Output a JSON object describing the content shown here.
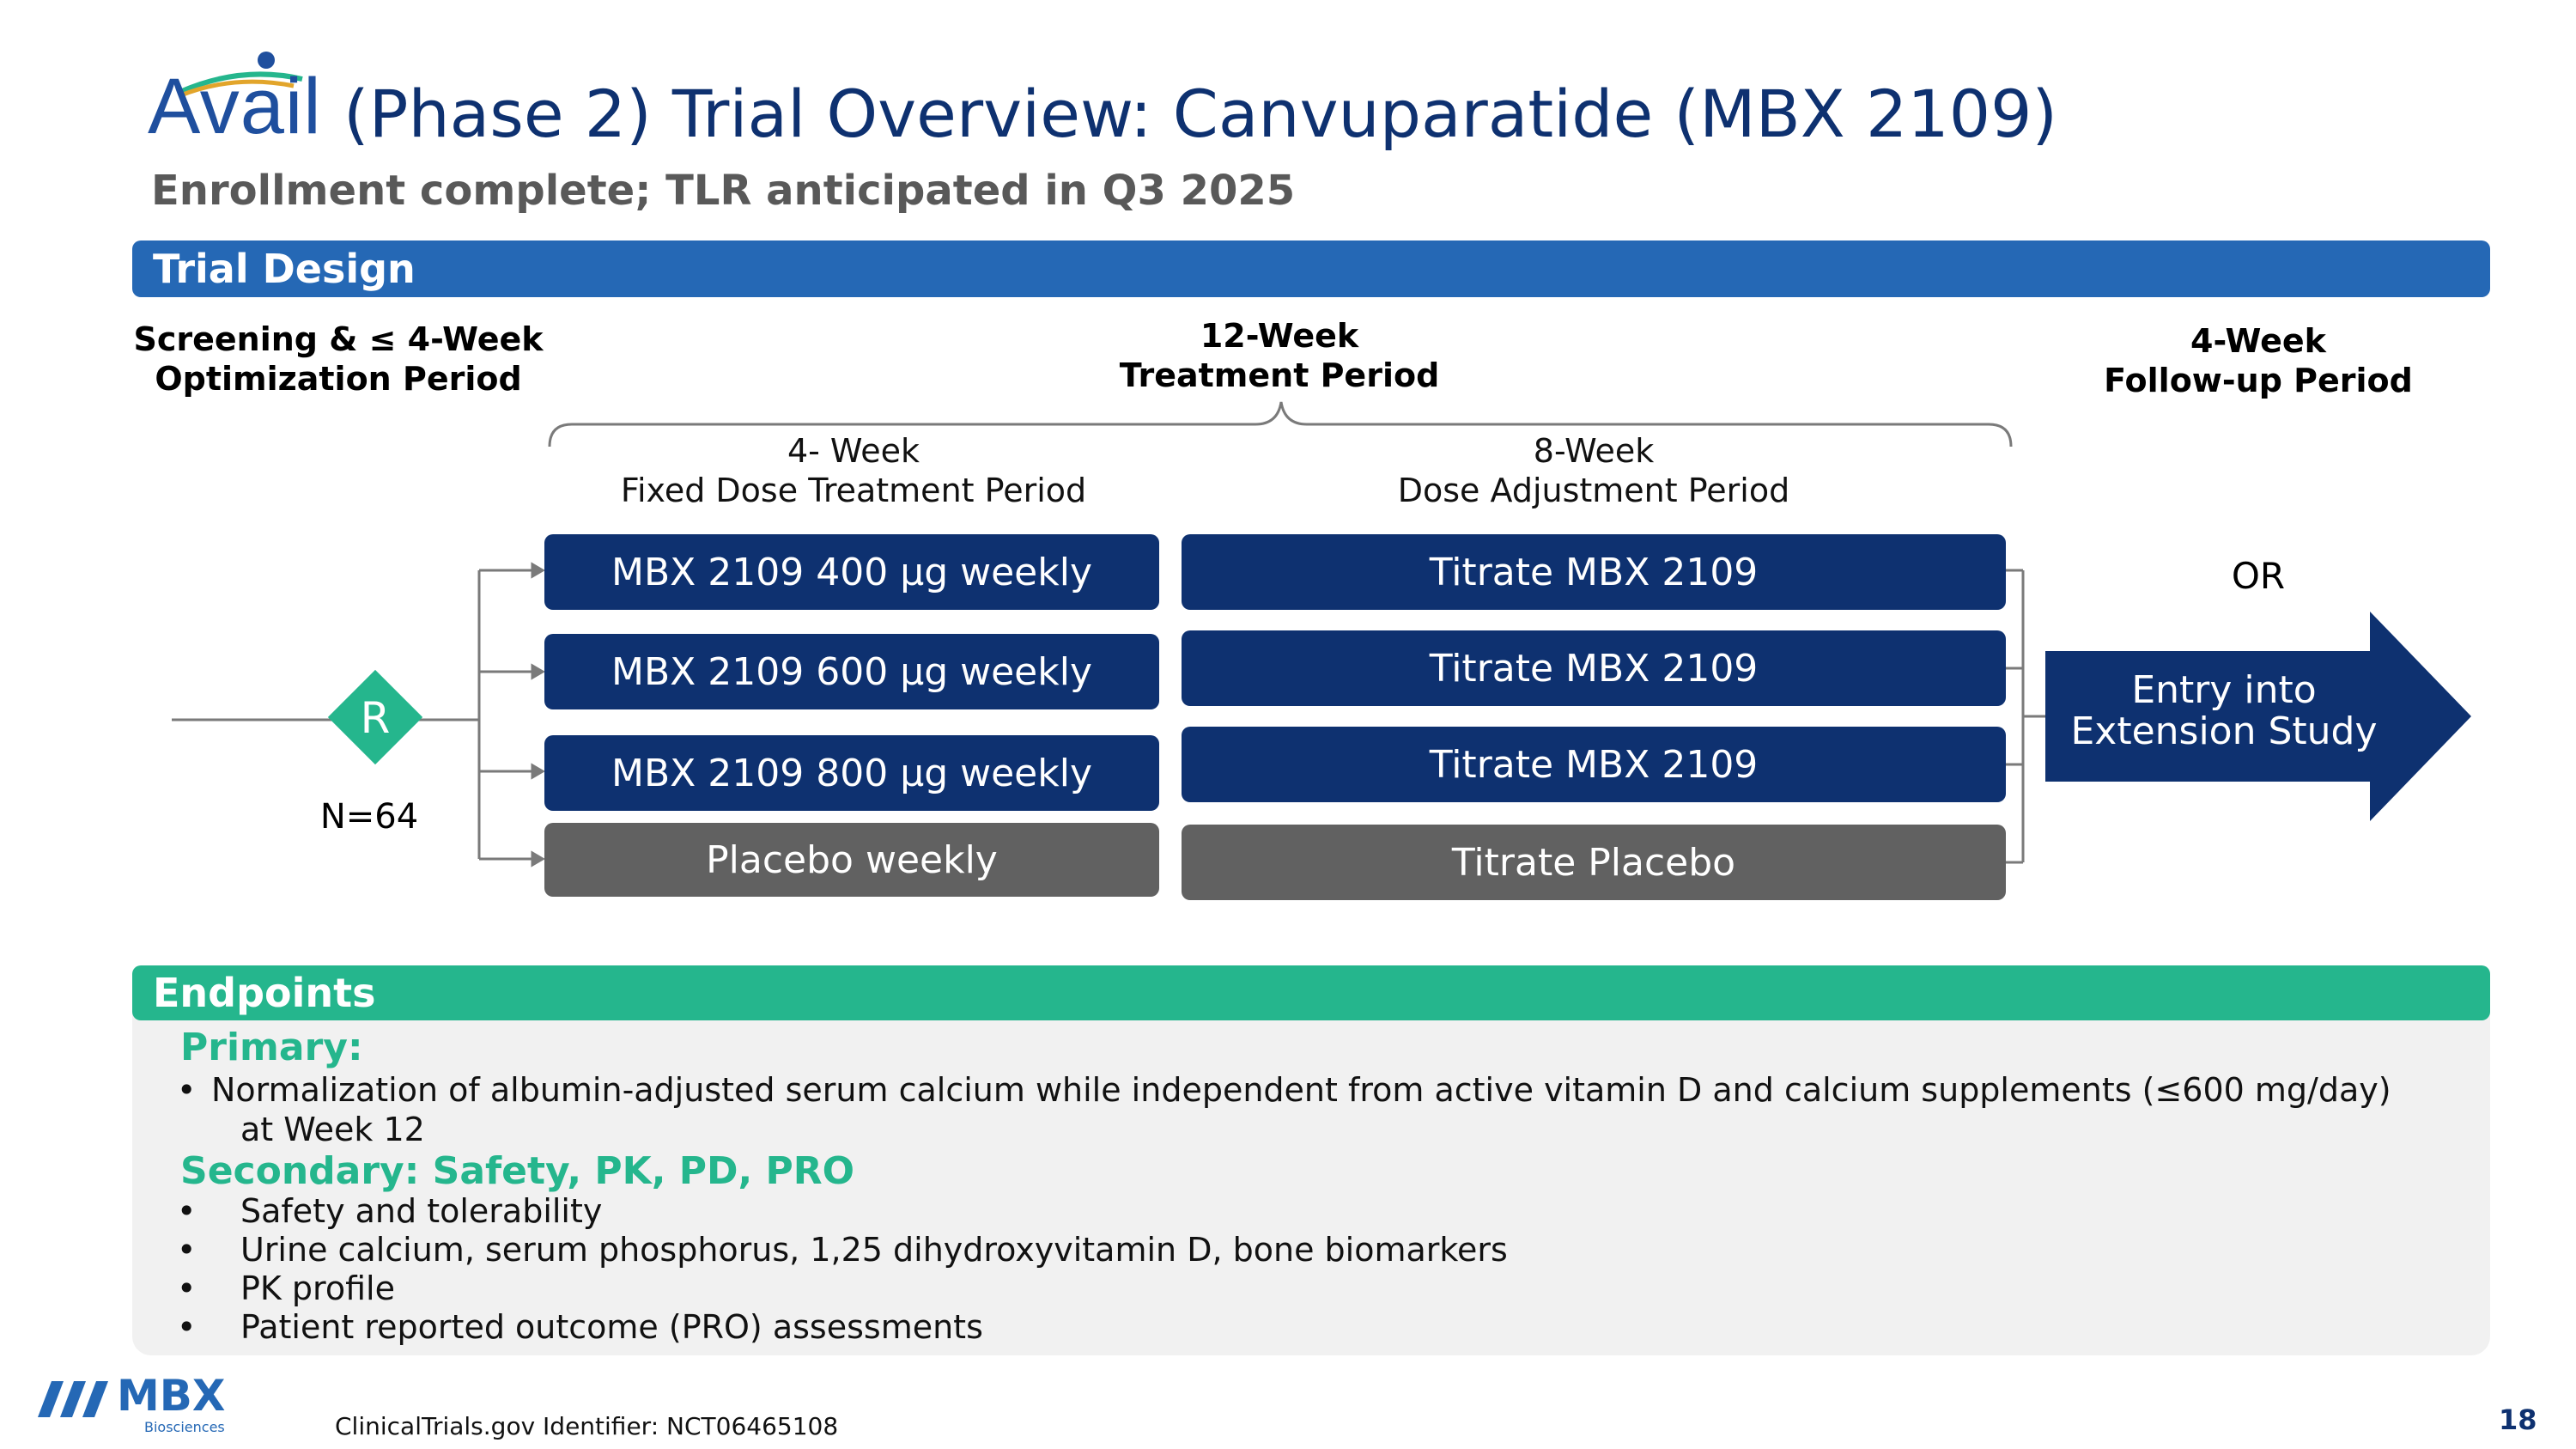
{
  "header": {
    "logo_text": "Avail",
    "title": "(Phase 2) Trial Overview: Canvuparatide (MBX 2109)",
    "subtitle": "Enrollment complete; TLR anticipated in Q3 2025"
  },
  "trial_design": {
    "bar_label": "Trial Design",
    "screening": {
      "line1": "Screening & ≤ 4-Week",
      "line2": "Optimization Period"
    },
    "treatment": {
      "line1": "12-Week",
      "line2": "Treatment Period"
    },
    "followup": {
      "line1": "4-Week",
      "line2": "Follow-up Period"
    },
    "fixed": {
      "line1": "4- Week",
      "line2": "Fixed Dose Treatment Period"
    },
    "adjust": {
      "line1": "8-Week",
      "line2": "Dose Adjustment Period"
    },
    "randomization": {
      "letter": "R",
      "n": "N=64"
    },
    "arms_fixed": [
      "MBX 2109 400 µg weekly",
      "MBX 2109 600 µg weekly",
      "MBX 2109 800 µg weekly",
      "Placebo weekly"
    ],
    "arms_titrate": [
      "Titrate MBX 2109",
      "Titrate MBX 2109",
      "Titrate MBX 2109",
      "Titrate Placebo"
    ],
    "or_label": "OR",
    "extension": {
      "line1": "Entry into",
      "line2": "Extension Study"
    }
  },
  "endpoints": {
    "bar_label": "Endpoints",
    "primary_heading": "Primary:",
    "primary_bullet_line1": "Normalization of albumin-adjusted serum calcium while independent from active vitamin D and calcium supplements (≤600 mg/day)",
    "primary_bullet_line2": "at Week 12",
    "secondary_heading": "Secondary: Safety, PK, PD, PRO",
    "secondary_bullets": [
      "Safety and tolerability",
      "Urine calcium, serum phosphorus, 1,25 dihydroxyvitamin D, bone biomarkers",
      "PK profile",
      "Patient reported outcome (PRO) assessments"
    ]
  },
  "footer": {
    "company": "MBX",
    "company_sub": "Biosciences",
    "identifier": "ClinicalTrials.gov Identifier: NCT06465108",
    "page_number": "18"
  },
  "colors": {
    "navy": "#0e3170",
    "blue_bar": "#2568b5",
    "green": "#25b68d",
    "gray_box": "#616161"
  }
}
